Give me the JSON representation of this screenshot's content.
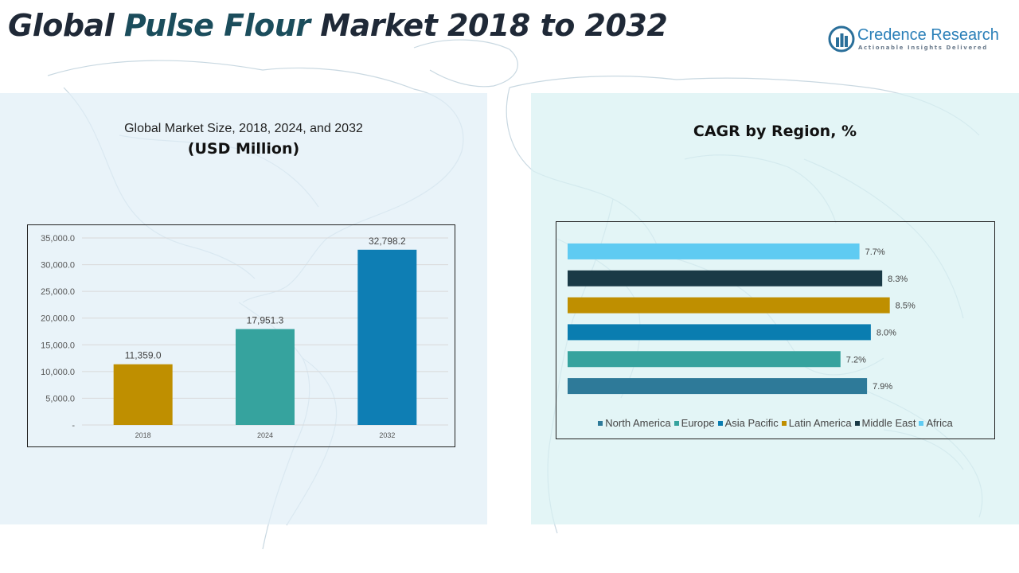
{
  "page": {
    "title": "Global Pulse Flour Market 2018 to 2032",
    "title_colors": [
      "#1f2937",
      "#1b4d5c"
    ]
  },
  "logo": {
    "name_part1": "Credence",
    "name_part2": " Research",
    "tagline": "Actionable Insights Delivered",
    "colors": {
      "name": "#2a7fb8",
      "mark": "#2a6f9a"
    }
  },
  "left_panel": {
    "subtitle": "Global Market Size, 2018, 2024, and 2032",
    "unit": "(USD Million)"
  },
  "right_panel": {
    "title": "CAGR by Region, %"
  },
  "chart_data": [
    {
      "type": "bar",
      "title": "Global Market Size, 2018, 2024, and 2032",
      "ylabel": "USD Million",
      "categories": [
        "2018",
        "2024",
        "2032"
      ],
      "values": [
        11359.0,
        17951.3,
        32798.2
      ],
      "value_labels": [
        "11,359.0",
        "17,951.3",
        "32,798.2"
      ],
      "colors": [
        "#bf8f00",
        "#36a39e",
        "#0e7eb4"
      ],
      "ylim": [
        0,
        35000
      ],
      "yticks": [
        0,
        5000,
        10000,
        15000,
        20000,
        25000,
        30000,
        35000
      ],
      "ytick_labels": [
        "-",
        "5,000.0",
        "10,000.0",
        "15,000.0",
        "20,000.0",
        "25,000.0",
        "30,000.0",
        "35,000.0"
      ],
      "grid": true,
      "grid_color": "#d9d9d9"
    },
    {
      "type": "bar",
      "orientation": "horizontal",
      "title": "CAGR by Region, %",
      "categories": [
        "North America",
        "Europe",
        "Asia Pacific",
        "Latin America",
        "Middle East",
        "Africa"
      ],
      "values": [
        7.9,
        7.2,
        8.0,
        8.5,
        8.3,
        7.7
      ],
      "value_labels": [
        "7.9%",
        "7.2%",
        "8.0%",
        "8.5%",
        "8.3%",
        "7.7%"
      ],
      "colors": [
        "#2e7a99",
        "#36a39e",
        "#0a7db0",
        "#bf8f00",
        "#1a3a46",
        "#5fcbf2"
      ],
      "xlim": [
        0,
        9.2
      ],
      "legend_position": "bottom",
      "grid": false
    }
  ]
}
